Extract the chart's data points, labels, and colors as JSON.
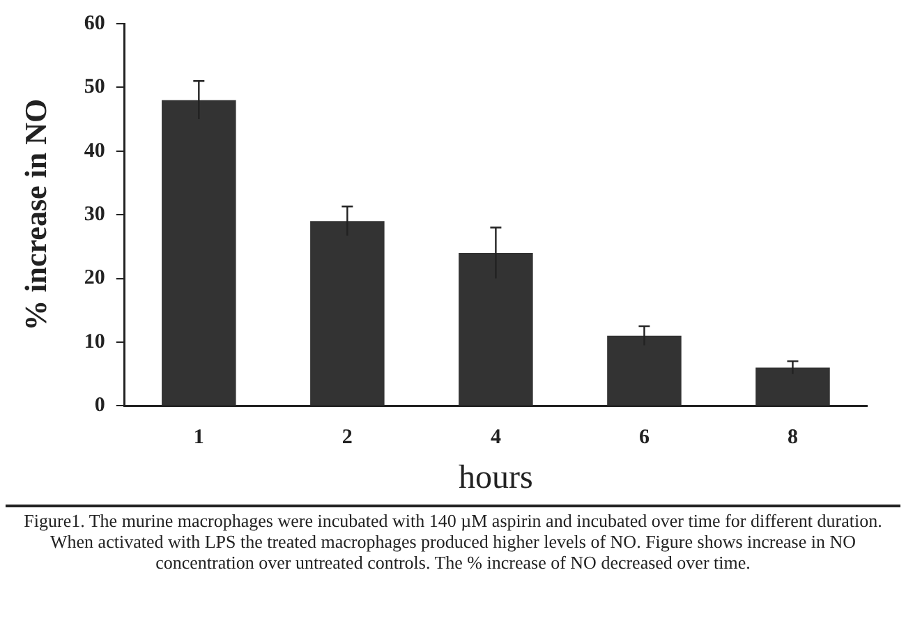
{
  "chart_data": {
    "type": "bar",
    "xlabel": "hours",
    "ylabel": "% increase in NO",
    "categories": [
      "1",
      "2",
      "4",
      "6",
      "8"
    ],
    "values": [
      48,
      29,
      24,
      11,
      6
    ],
    "errors": [
      3,
      2.3,
      4,
      1.5,
      1
    ],
    "color": "#333333",
    "ylim": [
      0,
      60
    ],
    "yticks": [
      0,
      10,
      20,
      30,
      40,
      50,
      60
    ],
    "grid": false,
    "legend": false,
    "annotations": [
      "Figure1. The murine macrophages were incubated with 140 µM aspirin and incubated over time for different duration. When activated with LPS the treated macrophages produced higher levels of NO. Figure shows increase in NO concentration over untreated controls. The % increase of NO decreased over time."
    ]
  }
}
